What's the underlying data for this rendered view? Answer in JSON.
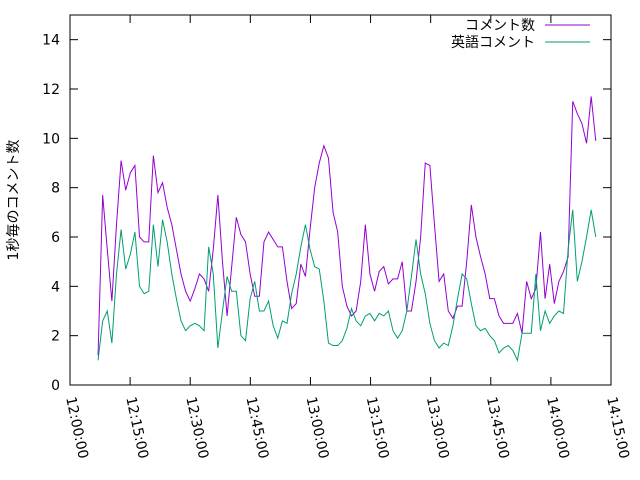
{
  "chart_data": {
    "type": "line",
    "y_label": "1秒毎のコメント数",
    "x": [
      43620,
      43689,
      43758,
      43827,
      43896,
      43965,
      44034,
      44103,
      44172,
      44241,
      44310,
      44379,
      44448,
      44517,
      44586,
      44655,
      44724,
      44793,
      44862,
      44931,
      45000,
      45069,
      45138,
      45207,
      45276,
      45345,
      45414,
      45483,
      45552,
      45621,
      45690,
      45759,
      45828,
      45897,
      45966,
      46035,
      46104,
      46173,
      46242,
      46311,
      46380,
      46449,
      46518,
      46587,
      46656,
      46725,
      46794,
      46863,
      46932,
      47001,
      47070,
      47139,
      47208,
      47277,
      47346,
      47415,
      47484,
      47553,
      47622,
      47691,
      47760,
      47829,
      47898,
      47967,
      48036,
      48105,
      48174,
      48243,
      48312,
      48381,
      48450,
      48519,
      48588,
      48657,
      48726,
      48795,
      48864,
      48933,
      49002,
      49071,
      49140,
      49209,
      49278,
      49347,
      49416,
      49485,
      49554,
      49623,
      49692,
      49761,
      49830,
      49899,
      49968,
      50037,
      50106,
      50175,
      50244,
      50313,
      50382,
      50451,
      50520,
      50589,
      50658,
      50727,
      50796,
      50865,
      50934,
      51003,
      51072
    ],
    "series": [
      {
        "name": "コメント数",
        "color": "#9400d3",
        "values": [
          1.2,
          7.7,
          5.5,
          3.4,
          6.5,
          9.1,
          7.9,
          8.6,
          8.9,
          6.0,
          5.8,
          5.8,
          9.3,
          7.8,
          8.2,
          7.2,
          6.5,
          5.5,
          4.5,
          3.8,
          3.4,
          3.9,
          4.5,
          4.3,
          3.8,
          5.5,
          7.7,
          5.0,
          2.8,
          4.8,
          6.8,
          6.1,
          5.8,
          4.5,
          3.6,
          3.6,
          5.8,
          6.2,
          5.9,
          5.6,
          5.6,
          4.2,
          3.1,
          3.3,
          4.9,
          4.4,
          6.3,
          8.0,
          9.0,
          9.7,
          9.2,
          7.0,
          6.2,
          4.0,
          3.2,
          2.8,
          3.0,
          4.2,
          6.5,
          4.5,
          3.8,
          4.6,
          4.8,
          4.1,
          4.3,
          4.3,
          5.0,
          3.0,
          3.0,
          4.2,
          6.0,
          9.0,
          8.9,
          6.5,
          4.2,
          4.5,
          3.0,
          2.7,
          3.2,
          3.2,
          5.0,
          7.3,
          6.0,
          5.2,
          4.5,
          3.5,
          3.5,
          2.8,
          2.5,
          2.5,
          2.5,
          2.9,
          2.1,
          4.2,
          3.5,
          3.9,
          6.2,
          3.5,
          4.9,
          3.3,
          4.2,
          4.6,
          5.2,
          11.5,
          11.0,
          10.6,
          9.8,
          11.7,
          9.9
        ]
      },
      {
        "name": "英語コメント",
        "color": "#009e73",
        "values": [
          1.0,
          2.6,
          3.0,
          1.7,
          4.5,
          6.3,
          4.7,
          5.3,
          6.2,
          4.0,
          3.7,
          3.8,
          6.5,
          4.8,
          6.7,
          5.8,
          4.5,
          3.5,
          2.6,
          2.2,
          2.4,
          2.5,
          2.4,
          2.2,
          5.6,
          4.5,
          1.5,
          3.0,
          4.4,
          3.8,
          3.8,
          2.0,
          1.8,
          3.5,
          4.2,
          3.0,
          3.0,
          3.4,
          2.4,
          1.9,
          2.6,
          2.5,
          3.7,
          4.5,
          5.6,
          6.5,
          5.5,
          4.8,
          4.7,
          3.4,
          1.7,
          1.6,
          1.6,
          1.8,
          2.3,
          3.1,
          2.6,
          2.4,
          2.8,
          2.9,
          2.6,
          2.9,
          2.8,
          3.0,
          2.2,
          1.9,
          2.2,
          3.0,
          4.4,
          5.9,
          4.5,
          3.7,
          2.5,
          1.8,
          1.5,
          1.7,
          1.6,
          2.4,
          3.5,
          4.5,
          4.3,
          3.3,
          2.4,
          2.2,
          2.3,
          2.0,
          1.8,
          1.3,
          1.5,
          1.6,
          1.4,
          1.0,
          2.1,
          2.1,
          2.1,
          4.5,
          2.2,
          3.0,
          2.5,
          2.8,
          3.0,
          2.9,
          5.5,
          7.1,
          4.2,
          5.0,
          6.0,
          7.1,
          6.0
        ]
      }
    ],
    "xlim": [
      43200,
      51300
    ],
    "xticks": [
      {
        "value": 43200,
        "label": "12:00:00"
      },
      {
        "value": 44100,
        "label": "12:15:00"
      },
      {
        "value": 45000,
        "label": "12:30:00"
      },
      {
        "value": 45900,
        "label": "12:45:00"
      },
      {
        "value": 46800,
        "label": "13:00:00"
      },
      {
        "value": 47700,
        "label": "13:15:00"
      },
      {
        "value": 48600,
        "label": "13:30:00"
      },
      {
        "value": 49500,
        "label": "13:45:00"
      },
      {
        "value": 50400,
        "label": "14:00:00"
      },
      {
        "value": 51300,
        "label": "14:15:00"
      }
    ],
    "ylim": [
      0,
      15
    ],
    "yticks": [
      0,
      2,
      4,
      6,
      8,
      10,
      12,
      14
    ],
    "legend": "upper right"
  }
}
